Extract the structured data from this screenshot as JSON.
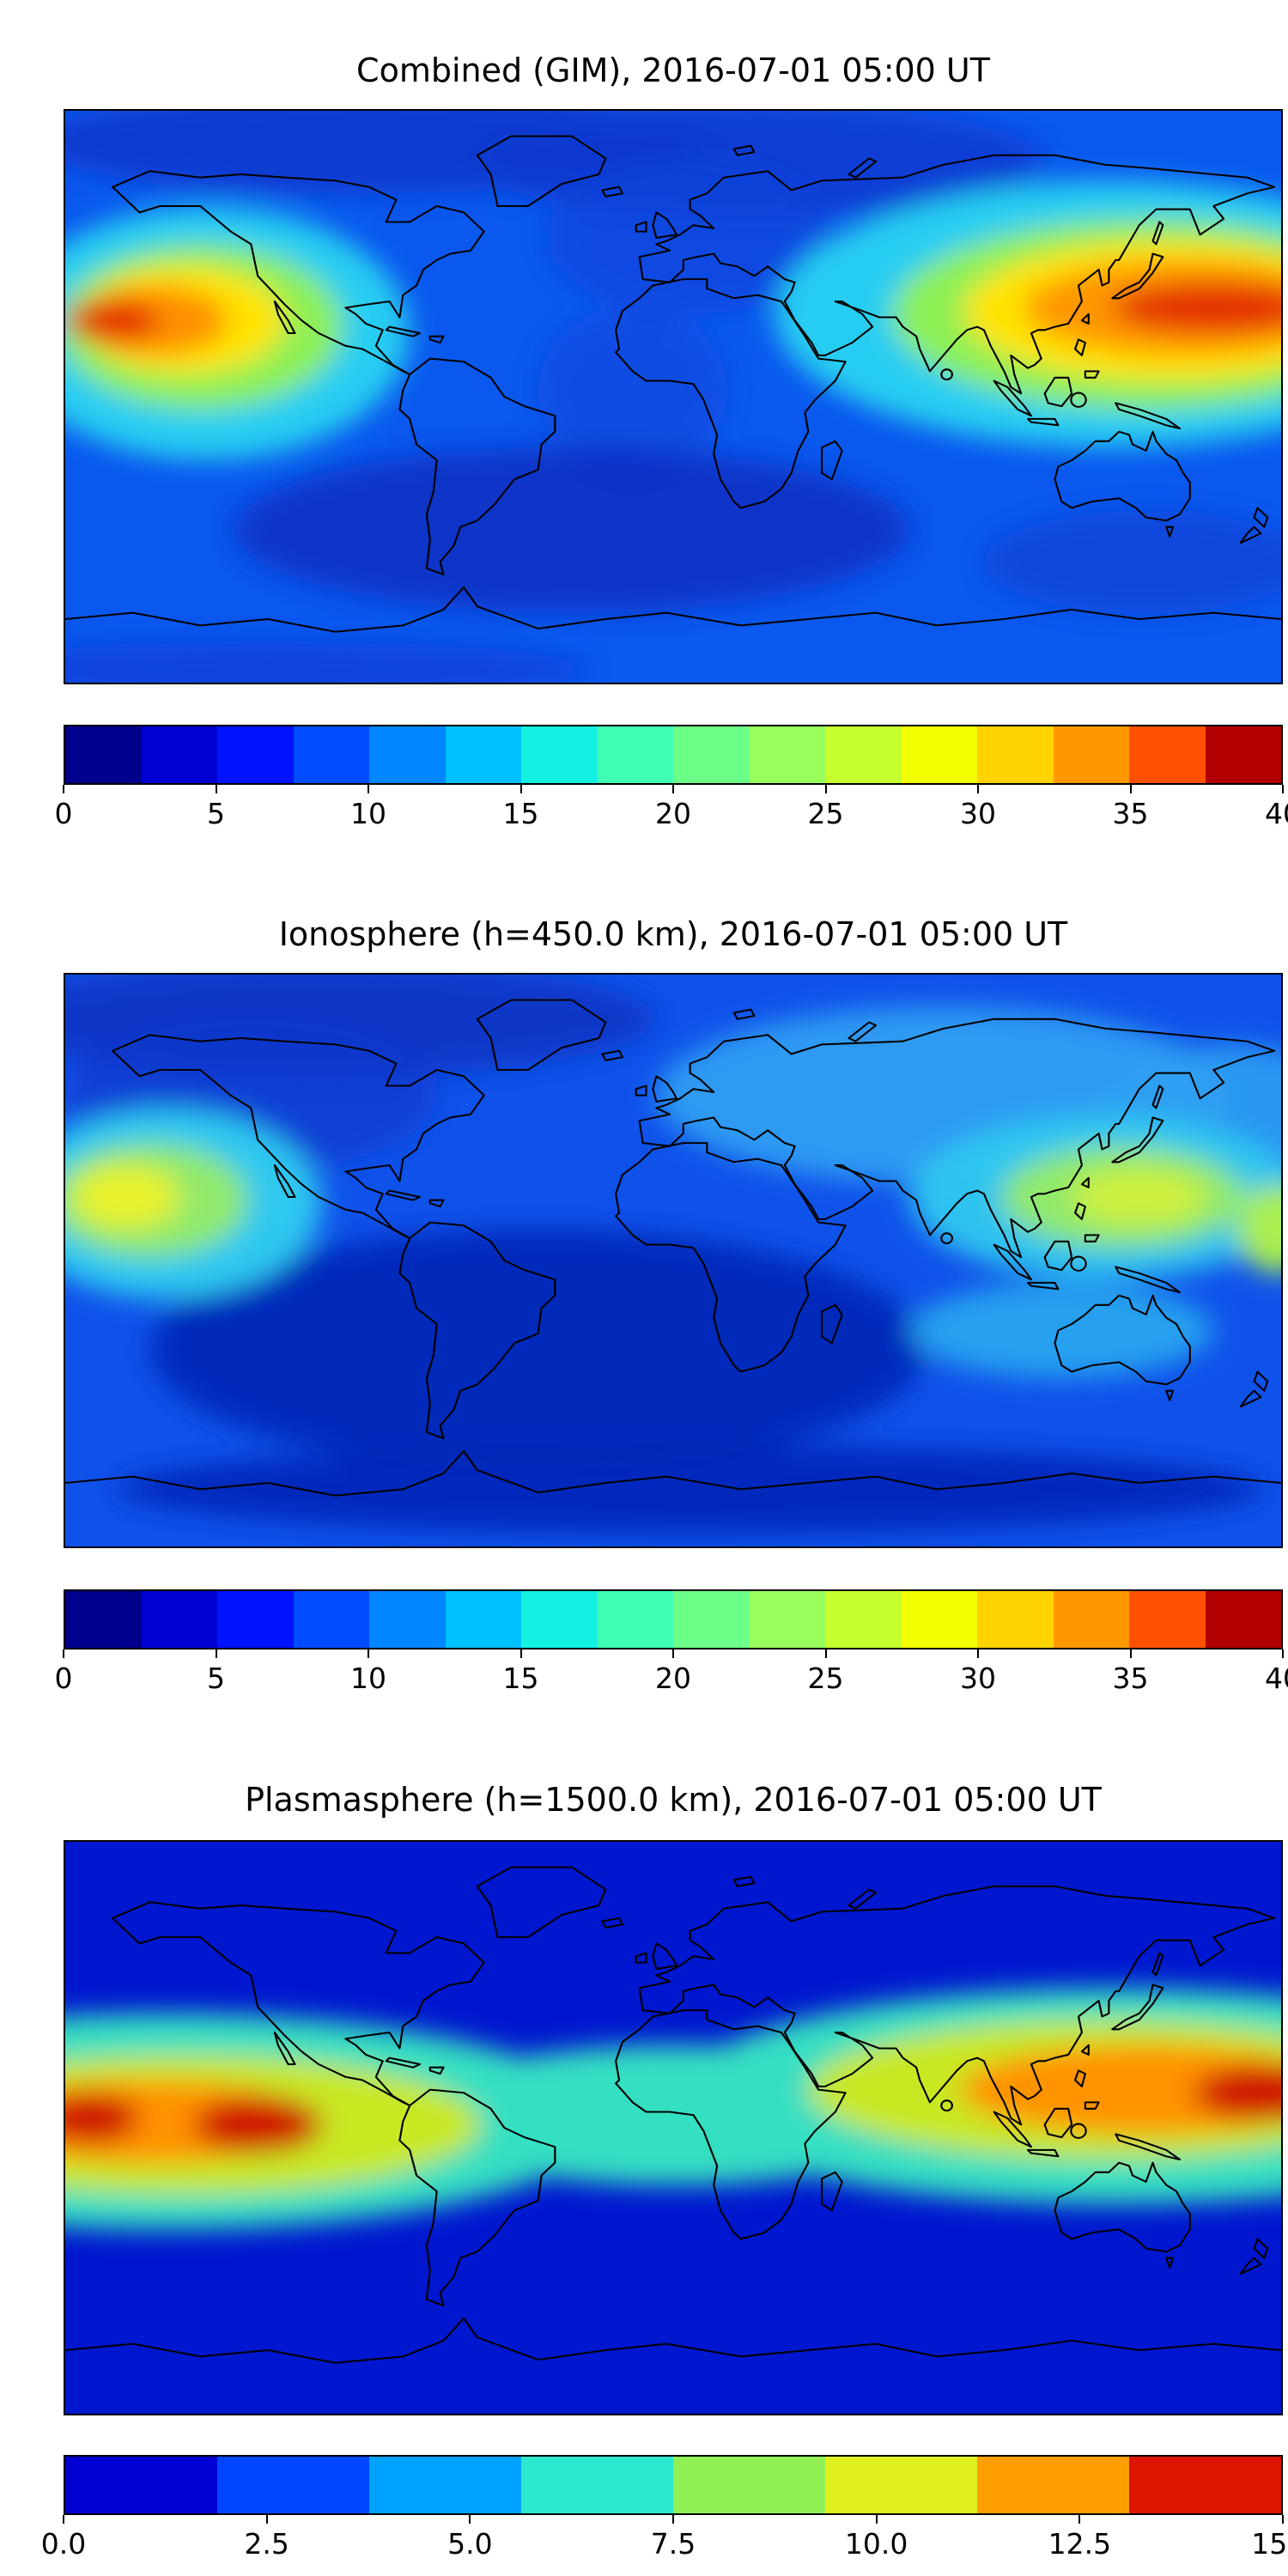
{
  "figure": {
    "background": "#ffffff",
    "coastline_color": "#000000"
  },
  "panels": [
    {
      "id": "combined",
      "title": "Combined (GIM), 2016-07-01 05:00 UT",
      "colorbar": {
        "min": 0,
        "max": 40,
        "ticks": [
          "0",
          "5",
          "10",
          "15",
          "20",
          "25",
          "30",
          "35",
          "40"
        ],
        "colors": [
          "#00008c",
          "#0000d0",
          "#0013ff",
          "#004dff",
          "#0087ff",
          "#00c1ff",
          "#12f1e2",
          "#3fffb5",
          "#6cff88",
          "#99ff5b",
          "#c6ff2e",
          "#f3ff01",
          "#ffd300",
          "#ff9800",
          "#ff5000",
          "#b20000"
        ]
      }
    },
    {
      "id": "ionosphere",
      "title": "Ionosphere (h=450.0 km), 2016-07-01 05:00 UT",
      "colorbar": {
        "min": 0,
        "max": 40,
        "ticks": [
          "0",
          "5",
          "10",
          "15",
          "20",
          "25",
          "30",
          "35",
          "40"
        ],
        "colors": [
          "#00008c",
          "#0000d0",
          "#0013ff",
          "#004dff",
          "#0087ff",
          "#00c1ff",
          "#12f1e2",
          "#3fffb5",
          "#6cff88",
          "#99ff5b",
          "#c6ff2e",
          "#f3ff01",
          "#ffd300",
          "#ff9800",
          "#ff5000",
          "#b20000"
        ]
      }
    },
    {
      "id": "plasmasphere",
      "title": "Plasmasphere (h=1500.0 km), 2016-07-01 05:00 UT",
      "colorbar": {
        "min": 0,
        "max": 15,
        "ticks": [
          "0.0",
          "2.5",
          "5.0",
          "7.5",
          "10.0",
          "12.5",
          "15.0"
        ],
        "colors": [
          "#0000d2",
          "#0046ff",
          "#00a2ff",
          "#2ce8cf",
          "#90f055",
          "#dff01e",
          "#ff9e00",
          "#dc1400"
        ]
      }
    }
  ],
  "chart_data": [
    {
      "type": "heatmap",
      "subtype": "filled-contour world map",
      "title": "Combined (GIM), 2016-07-01 05:00 UT",
      "projection": "equirectangular, lon -180..180, lat -90..90",
      "colormap": "jet",
      "value_range": [
        0,
        40
      ],
      "colorbar_ticks": [
        0,
        5,
        10,
        15,
        20,
        25,
        30,
        35,
        40
      ],
      "grid_lons": [
        -180,
        -150,
        -120,
        -90,
        -60,
        -30,
        0,
        30,
        60,
        90,
        120,
        150,
        180
      ],
      "grid_lats": [
        75,
        50,
        25,
        0,
        -25,
        -50,
        -75
      ],
      "values_estimated": [
        [
          6,
          6,
          5,
          5,
          5,
          5,
          4,
          5,
          6,
          7,
          7,
          7,
          6
        ],
        [
          10,
          9,
          7,
          6,
          5,
          5,
          5,
          6,
          8,
          9,
          10,
          11,
          10
        ],
        [
          30,
          36,
          26,
          14,
          9,
          7,
          8,
          13,
          20,
          28,
          35,
          38,
          33
        ],
        [
          22,
          24,
          16,
          9,
          7,
          6,
          8,
          12,
          18,
          24,
          28,
          30,
          26
        ],
        [
          12,
          13,
          9,
          5,
          4,
          3,
          5,
          8,
          11,
          15,
          19,
          21,
          16
        ],
        [
          7,
          7,
          5,
          4,
          3,
          3,
          4,
          5,
          6,
          8,
          9,
          9,
          8
        ],
        [
          5,
          5,
          4,
          4,
          3,
          3,
          3,
          4,
          4,
          5,
          5,
          5,
          5
        ]
      ],
      "notes": "Two maxima: eastern Pacific near 140W, 20N (~36-40) and western Pacific / SE Asia near 120-170E, 10-25N (~36-40); minima (<5) at high latitudes and over the South Atlantic."
    },
    {
      "type": "heatmap",
      "subtype": "filled-contour world map",
      "title": "Ionosphere (h=450.0 km), 2016-07-01 05:00 UT",
      "projection": "equirectangular, lon -180..180, lat -90..90",
      "colormap": "jet",
      "value_range": [
        0,
        40
      ],
      "colorbar_ticks": [
        0,
        5,
        10,
        15,
        20,
        25,
        30,
        35,
        40
      ],
      "grid_lons": [
        -180,
        -150,
        -120,
        -90,
        -60,
        -30,
        0,
        30,
        60,
        90,
        120,
        150,
        180
      ],
      "grid_lats": [
        75,
        50,
        25,
        0,
        -25,
        -50,
        -75
      ],
      "values_estimated": [
        [
          4,
          4,
          4,
          4,
          4,
          4,
          3,
          4,
          5,
          6,
          6,
          6,
          5
        ],
        [
          7,
          6,
          5,
          5,
          4,
          4,
          4,
          5,
          7,
          8,
          9,
          9,
          8
        ],
        [
          20,
          24,
          17,
          9,
          6,
          5,
          6,
          10,
          14,
          18,
          22,
          25,
          22
        ],
        [
          15,
          16,
          11,
          6,
          5,
          4,
          6,
          9,
          13,
          16,
          19,
          20,
          18
        ],
        [
          8,
          9,
          6,
          4,
          3,
          2,
          4,
          6,
          8,
          10,
          13,
          14,
          11
        ],
        [
          5,
          5,
          4,
          3,
          2,
          2,
          3,
          4,
          4,
          6,
          6,
          6,
          6
        ],
        [
          3,
          3,
          3,
          3,
          2,
          2,
          2,
          3,
          3,
          3,
          4,
          4,
          4
        ]
      ],
      "notes": "Same pattern as combined map but weaker: maxima ~22-26 at the same longitudes; broad minimum (<5) over the South America / Atlantic sector; light-blue plateau (~10-14) over northern Asia."
    },
    {
      "type": "heatmap",
      "subtype": "filled-contour world map",
      "title": "Plasmasphere (h=1500.0 km), 2016-07-01 05:00 UT",
      "projection": "equirectangular, lon -180..180, lat -90..90",
      "colormap": "jet",
      "value_range": [
        0,
        15
      ],
      "colorbar_ticks": [
        0.0,
        2.5,
        5.0,
        7.5,
        10.0,
        12.5,
        15.0
      ],
      "grid_lons": [
        -180,
        -150,
        -120,
        -90,
        -60,
        -30,
        0,
        30,
        60,
        90,
        120,
        150,
        180
      ],
      "grid_lats": [
        75,
        50,
        25,
        0,
        -25,
        -50,
        -75
      ],
      "values_estimated": [
        [
          1.5,
          1.5,
          1.5,
          1.5,
          1.5,
          1.5,
          1.5,
          1.5,
          1.5,
          1.5,
          1.5,
          1.5,
          1.5
        ],
        [
          2,
          2,
          2,
          2,
          2,
          2,
          2,
          2,
          2.5,
          3,
          3,
          2.5,
          2
        ],
        [
          8,
          9,
          7,
          4,
          3,
          3,
          4,
          6,
          7,
          9,
          11,
          10,
          9
        ],
        [
          14,
          13,
          10,
          7,
          6,
          5,
          6,
          7,
          9,
          11,
          12,
          13,
          14
        ],
        [
          9,
          11,
          9,
          6,
          4,
          4,
          4,
          5,
          6,
          8,
          9,
          9,
          9
        ],
        [
          3,
          3,
          3,
          3,
          2.5,
          2,
          2,
          2,
          2.5,
          3,
          3,
          3,
          3
        ],
        [
          1.5,
          1.5,
          1.5,
          1.5,
          1.5,
          1.5,
          1.5,
          1.5,
          1.5,
          1.5,
          1.5,
          1.5,
          1.5
        ]
      ],
      "notes": "Equatorial band with red cores (~14-15) near 180-150W and near 170-180E; yellow-green crests (~9-11), turquoise band (~5-7) across Africa; values <2.5 poleward of +/-50 latitude."
    }
  ]
}
